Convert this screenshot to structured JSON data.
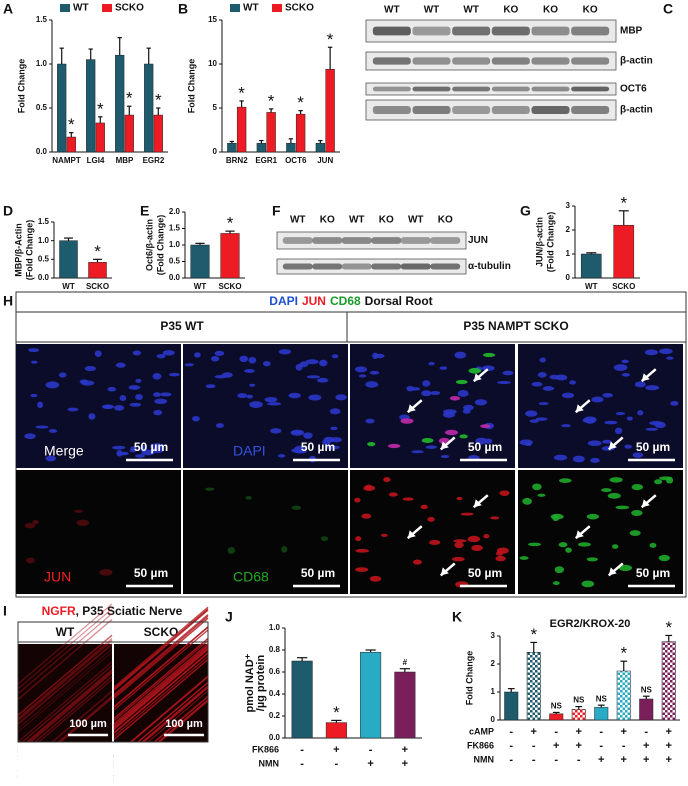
{
  "chart_data": [
    {
      "type": "bar",
      "panel": "A",
      "ylabel": [
        "Fold Change"
      ],
      "categories": [
        "NAMPT",
        "LGI4",
        "MBP",
        "EGR2"
      ],
      "series": [
        {
          "name": "WT",
          "color": "#1d5b6d",
          "values": [
            1.0,
            1.05,
            1.1,
            1.0
          ],
          "errors": [
            0.18,
            0.12,
            0.2,
            0.18
          ]
        },
        {
          "name": "SCKO",
          "color": "#ed1c24",
          "values": [
            0.17,
            0.33,
            0.42,
            0.42
          ],
          "errors": [
            0.05,
            0.07,
            0.1,
            0.08
          ],
          "annotations": [
            "*",
            "*",
            "*",
            "*"
          ]
        }
      ],
      "ylim": [
        0,
        1.5
      ],
      "yticks": [
        {
          "value": 0,
          "label": "0.0"
        },
        {
          "value": 0.5,
          "label": "0.5"
        },
        {
          "value": 1,
          "label": "1.0"
        },
        {
          "value": 1.5,
          "label": "1.5"
        }
      ]
    },
    {
      "type": "bar",
      "panel": "B",
      "ylabel": [
        "Fold Change"
      ],
      "categories": [
        "BRN2",
        "EGR1",
        "OCT6",
        "JUN"
      ],
      "series": [
        {
          "name": "WT",
          "color": "#1d5b6d",
          "values": [
            1.0,
            1.0,
            1.0,
            1.0
          ],
          "errors": [
            0.2,
            0.3,
            0.5,
            0.3
          ]
        },
        {
          "name": "SCKO",
          "color": "#ed1c24",
          "values": [
            5.1,
            4.5,
            4.3,
            9.4
          ],
          "errors": [
            0.7,
            0.4,
            0.4,
            2.5
          ],
          "annotations": [
            "*",
            "*",
            "*",
            "*"
          ]
        }
      ],
      "ylim": [
        0,
        15
      ],
      "yticks": [
        0,
        5,
        10,
        15
      ]
    },
    {
      "type": "bar",
      "panel": "D",
      "ylabel": [
        "MBP/β-Actin",
        "(Fold Change)"
      ],
      "categories": [
        "WT",
        "SCKO"
      ],
      "values": [
        1.0,
        0.42
      ],
      "errors": [
        0.07,
        0.08
      ],
      "colors": [
        "#1d5b6d",
        "#ed1c24"
      ],
      "annotations": [
        null,
        "*"
      ],
      "ylim": [
        0,
        1.5
      ],
      "yticks": [
        {
          "value": 0,
          "label": "0.0"
        },
        {
          "value": 0.5,
          "label": "0.5"
        },
        {
          "value": 1,
          "label": "1.0"
        },
        {
          "value": 1.5,
          "label": "1.5"
        }
      ]
    },
    {
      "type": "bar",
      "panel": "E",
      "ylabel": [
        "Oct6/β-actin",
        "(Fold Change)"
      ],
      "categories": [
        "WT",
        "SCKO"
      ],
      "values": [
        1.0,
        1.35
      ],
      "errors": [
        0.05,
        0.07
      ],
      "colors": [
        "#1d5b6d",
        "#ed1c24"
      ],
      "annotations": [
        null,
        "*"
      ],
      "ylim": [
        0,
        2
      ],
      "yticks": [
        {
          "value": 0,
          "label": "0.0"
        },
        {
          "value": 0.5,
          "label": "0.5"
        },
        {
          "value": 1,
          "label": "1.0"
        },
        {
          "value": 1.5,
          "label": "1.5"
        },
        {
          "value": 2,
          "label": "2.0"
        }
      ]
    },
    {
      "type": "bar",
      "panel": "G",
      "ylabel": [
        "JUN/β-actin",
        "(Fold Change)"
      ],
      "categories": [
        "WT",
        "SCKO"
      ],
      "values": [
        1.0,
        2.2
      ],
      "errors": [
        0.05,
        0.6
      ],
      "colors": [
        "#1d5b6d",
        "#ed1c24"
      ],
      "annotations": [
        null,
        "*"
      ],
      "ylim": [
        0,
        3
      ],
      "yticks": [
        0,
        1,
        2,
        3
      ]
    },
    {
      "type": "bar",
      "panel": "J",
      "ylabel": [
        "pmol NAD⁺",
        "/µg protein"
      ],
      "categories": [
        null,
        null,
        null,
        null
      ],
      "values": [
        0.7,
        0.14,
        0.78,
        0.6
      ],
      "errors": [
        0.03,
        0.02,
        0.02,
        0.03
      ],
      "colors": [
        "#1d5b6d",
        "#ed1c24",
        "#29abc6",
        "#7a1f5a"
      ],
      "annotations": [
        null,
        "*",
        null,
        "#"
      ],
      "conditions": [
        {
          "name": "FK866",
          "signs": [
            "-",
            "+",
            "-",
            "+"
          ]
        },
        {
          "name": "NMN",
          "signs": [
            "-",
            "-",
            "+",
            "+"
          ]
        }
      ],
      "ylim": [
        0,
        1
      ],
      "yticks": [
        {
          "value": 0,
          "label": "0.0"
        },
        {
          "value": 0.2,
          "label": "0.2"
        },
        {
          "value": 0.4,
          "label": "0.4"
        },
        {
          "value": 0.6,
          "label": "0.6"
        },
        {
          "value": 0.8,
          "label": "0.8"
        },
        {
          "value": 1,
          "label": "1.0"
        }
      ]
    },
    {
      "type": "bar",
      "panel": "K",
      "title": "EGR2/KROX-20",
      "ylabel": [
        "Fold Change"
      ],
      "categories": [
        null,
        null,
        null,
        null,
        null,
        null,
        null,
        null
      ],
      "values": [
        1.0,
        2.42,
        0.22,
        0.38,
        0.45,
        1.75,
        0.75,
        2.8
      ],
      "errors": [
        0.12,
        0.35,
        0.05,
        0.1,
        0.08,
        0.35,
        0.1,
        0.22
      ],
      "colors": [
        "#1d5b6d",
        "#1d5b6d",
        "#ed1c24",
        "#ed1c24",
        "#29abc6",
        "#29abc6",
        "#7a1f5a",
        "#7a1f5a"
      ],
      "checkered": [
        false,
        true,
        false,
        true,
        false,
        true,
        false,
        true
      ],
      "annotations": [
        null,
        "*",
        "NS",
        "NS",
        "NS",
        "*",
        "NS",
        "*"
      ],
      "conditions": [
        {
          "name": "cAMP",
          "signs": [
            "-",
            "+",
            "-",
            "+",
            "-",
            "+",
            "-",
            "+"
          ]
        },
        {
          "name": "FK866",
          "signs": [
            "-",
            "-",
            "+",
            "+",
            "-",
            "-",
            "+",
            "+"
          ]
        },
        {
          "name": "NMN",
          "signs": [
            "-",
            "-",
            "-",
            "-",
            "+",
            "+",
            "+",
            "+"
          ]
        }
      ],
      "ylim": [
        0,
        3
      ],
      "yticks": [
        0,
        1,
        2,
        3
      ]
    }
  ],
  "blots": [
    {
      "panel": "C",
      "lanes": [
        "WT",
        "WT",
        "WT",
        "KO",
        "KO",
        "KO"
      ],
      "bands": [
        "MBP",
        "β-actin",
        "OCT6",
        "β-actin"
      ]
    },
    {
      "panel": "F",
      "lanes": [
        "WT",
        "KO",
        "WT",
        "KO",
        "WT",
        "KO"
      ],
      "bands": [
        "JUN",
        "α-tubulin"
      ]
    }
  ],
  "micrograph_h": {
    "panel": "H",
    "title": [
      {
        "text": "DAPI",
        "color": "#1f4fd6"
      },
      {
        "text": "JUN",
        "color": "#ed1c24"
      },
      {
        "text": "CD68",
        "color": "#1a9a2a"
      },
      {
        "text": "Dorsal Root",
        "color": "#111111"
      }
    ],
    "groups": [
      "P35 WT",
      "P35 NAMPT SCKO"
    ],
    "channels": [
      {
        "text": "Merge",
        "color": "#ffffff"
      },
      {
        "text": "DAPI",
        "color": "#3355dd"
      },
      {
        "text": "JUN",
        "color": "#ee2222"
      },
      {
        "text": "CD68",
        "color": "#22aa22"
      }
    ],
    "scale": "50 µm"
  },
  "micrograph_i": {
    "panel": "I",
    "title": [
      {
        "text": "NGFR",
        "color": "#ed1c24"
      },
      {
        "text": ", P35 Sciatic Nerve",
        "color": "#111111"
      }
    ],
    "groups": [
      "WT",
      "SCKO"
    ],
    "scale": "100 µm"
  }
}
